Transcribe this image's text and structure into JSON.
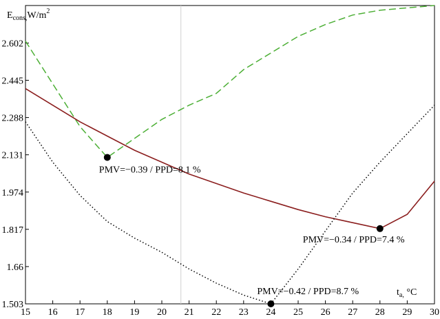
{
  "chart_data": {
    "type": "line",
    "ylabel": {
      "main": "E",
      "sub": "cons,",
      "unit": "W/m",
      "sup": "2"
    },
    "xlabel": {
      "main": "t",
      "sub": "a,",
      "unit": " °C"
    },
    "xlim": [
      15,
      30
    ],
    "ylim": [
      1.503,
      2.76
    ],
    "x_ticks": [
      "15",
      "16",
      "17",
      "18",
      "19",
      "20",
      "21",
      "22",
      "23",
      "24",
      "25",
      "26",
      "27",
      "28",
      "29",
      "30"
    ],
    "y_ticks": [
      "1.503",
      "1.66",
      "1.817",
      "1.974",
      "2.131",
      "2.288",
      "2.445",
      "2.602"
    ],
    "grid": false,
    "series": [
      {
        "style": "dashed",
        "color": "#4caf35",
        "x": [
          15,
          16,
          17,
          18,
          19,
          20,
          21,
          22,
          23,
          24,
          25,
          26,
          27,
          28,
          29,
          30
        ],
        "y": [
          2.61,
          2.43,
          2.25,
          2.12,
          2.2,
          2.28,
          2.34,
          2.39,
          2.49,
          2.56,
          2.63,
          2.68,
          2.72,
          2.74,
          2.75,
          2.76
        ]
      },
      {
        "style": "solid",
        "color": "#8b1e1e",
        "x": [
          15,
          16,
          17,
          18,
          19,
          20,
          21,
          22,
          23,
          24,
          25,
          26,
          27,
          28,
          29,
          30
        ],
        "y": [
          2.41,
          2.34,
          2.27,
          2.21,
          2.15,
          2.1,
          2.05,
          2.01,
          1.97,
          1.935,
          1.9,
          1.87,
          1.845,
          1.82,
          1.88,
          2.02
        ]
      },
      {
        "style": "dotted",
        "color": "#000000",
        "x": [
          15,
          16,
          17,
          18,
          19,
          20,
          21,
          22,
          23,
          24,
          25,
          26,
          27,
          28,
          29,
          30
        ],
        "y": [
          2.27,
          2.1,
          1.96,
          1.85,
          1.78,
          1.72,
          1.65,
          1.59,
          1.54,
          1.503,
          1.65,
          1.81,
          1.97,
          2.1,
          2.22,
          2.34
        ]
      }
    ],
    "markers": [
      {
        "x": 18,
        "y": 2.12
      },
      {
        "x": 28,
        "y": 1.82
      },
      {
        "x": 24,
        "y": 1.503
      }
    ],
    "annotations": [
      {
        "text": "PMV=−0.39 / PPD=8.1 %",
        "x": 18,
        "y": 2.12
      },
      {
        "text": "PMV=−0.34 / PPD=7.4 %",
        "x": 28,
        "y": 1.82
      },
      {
        "text": "PMV=−0.42 / PPD=8.7 %",
        "x": 24,
        "y": 1.503
      }
    ],
    "reference_line_x": 20.7
  }
}
